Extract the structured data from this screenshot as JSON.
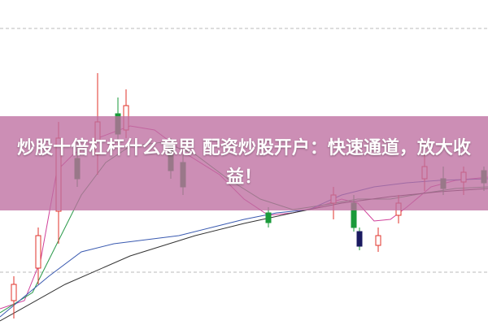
{
  "banner": {
    "title": "炒股十倍杠杆什么意思 配资炒股开户：快速通道，放大收益！"
  }
}
